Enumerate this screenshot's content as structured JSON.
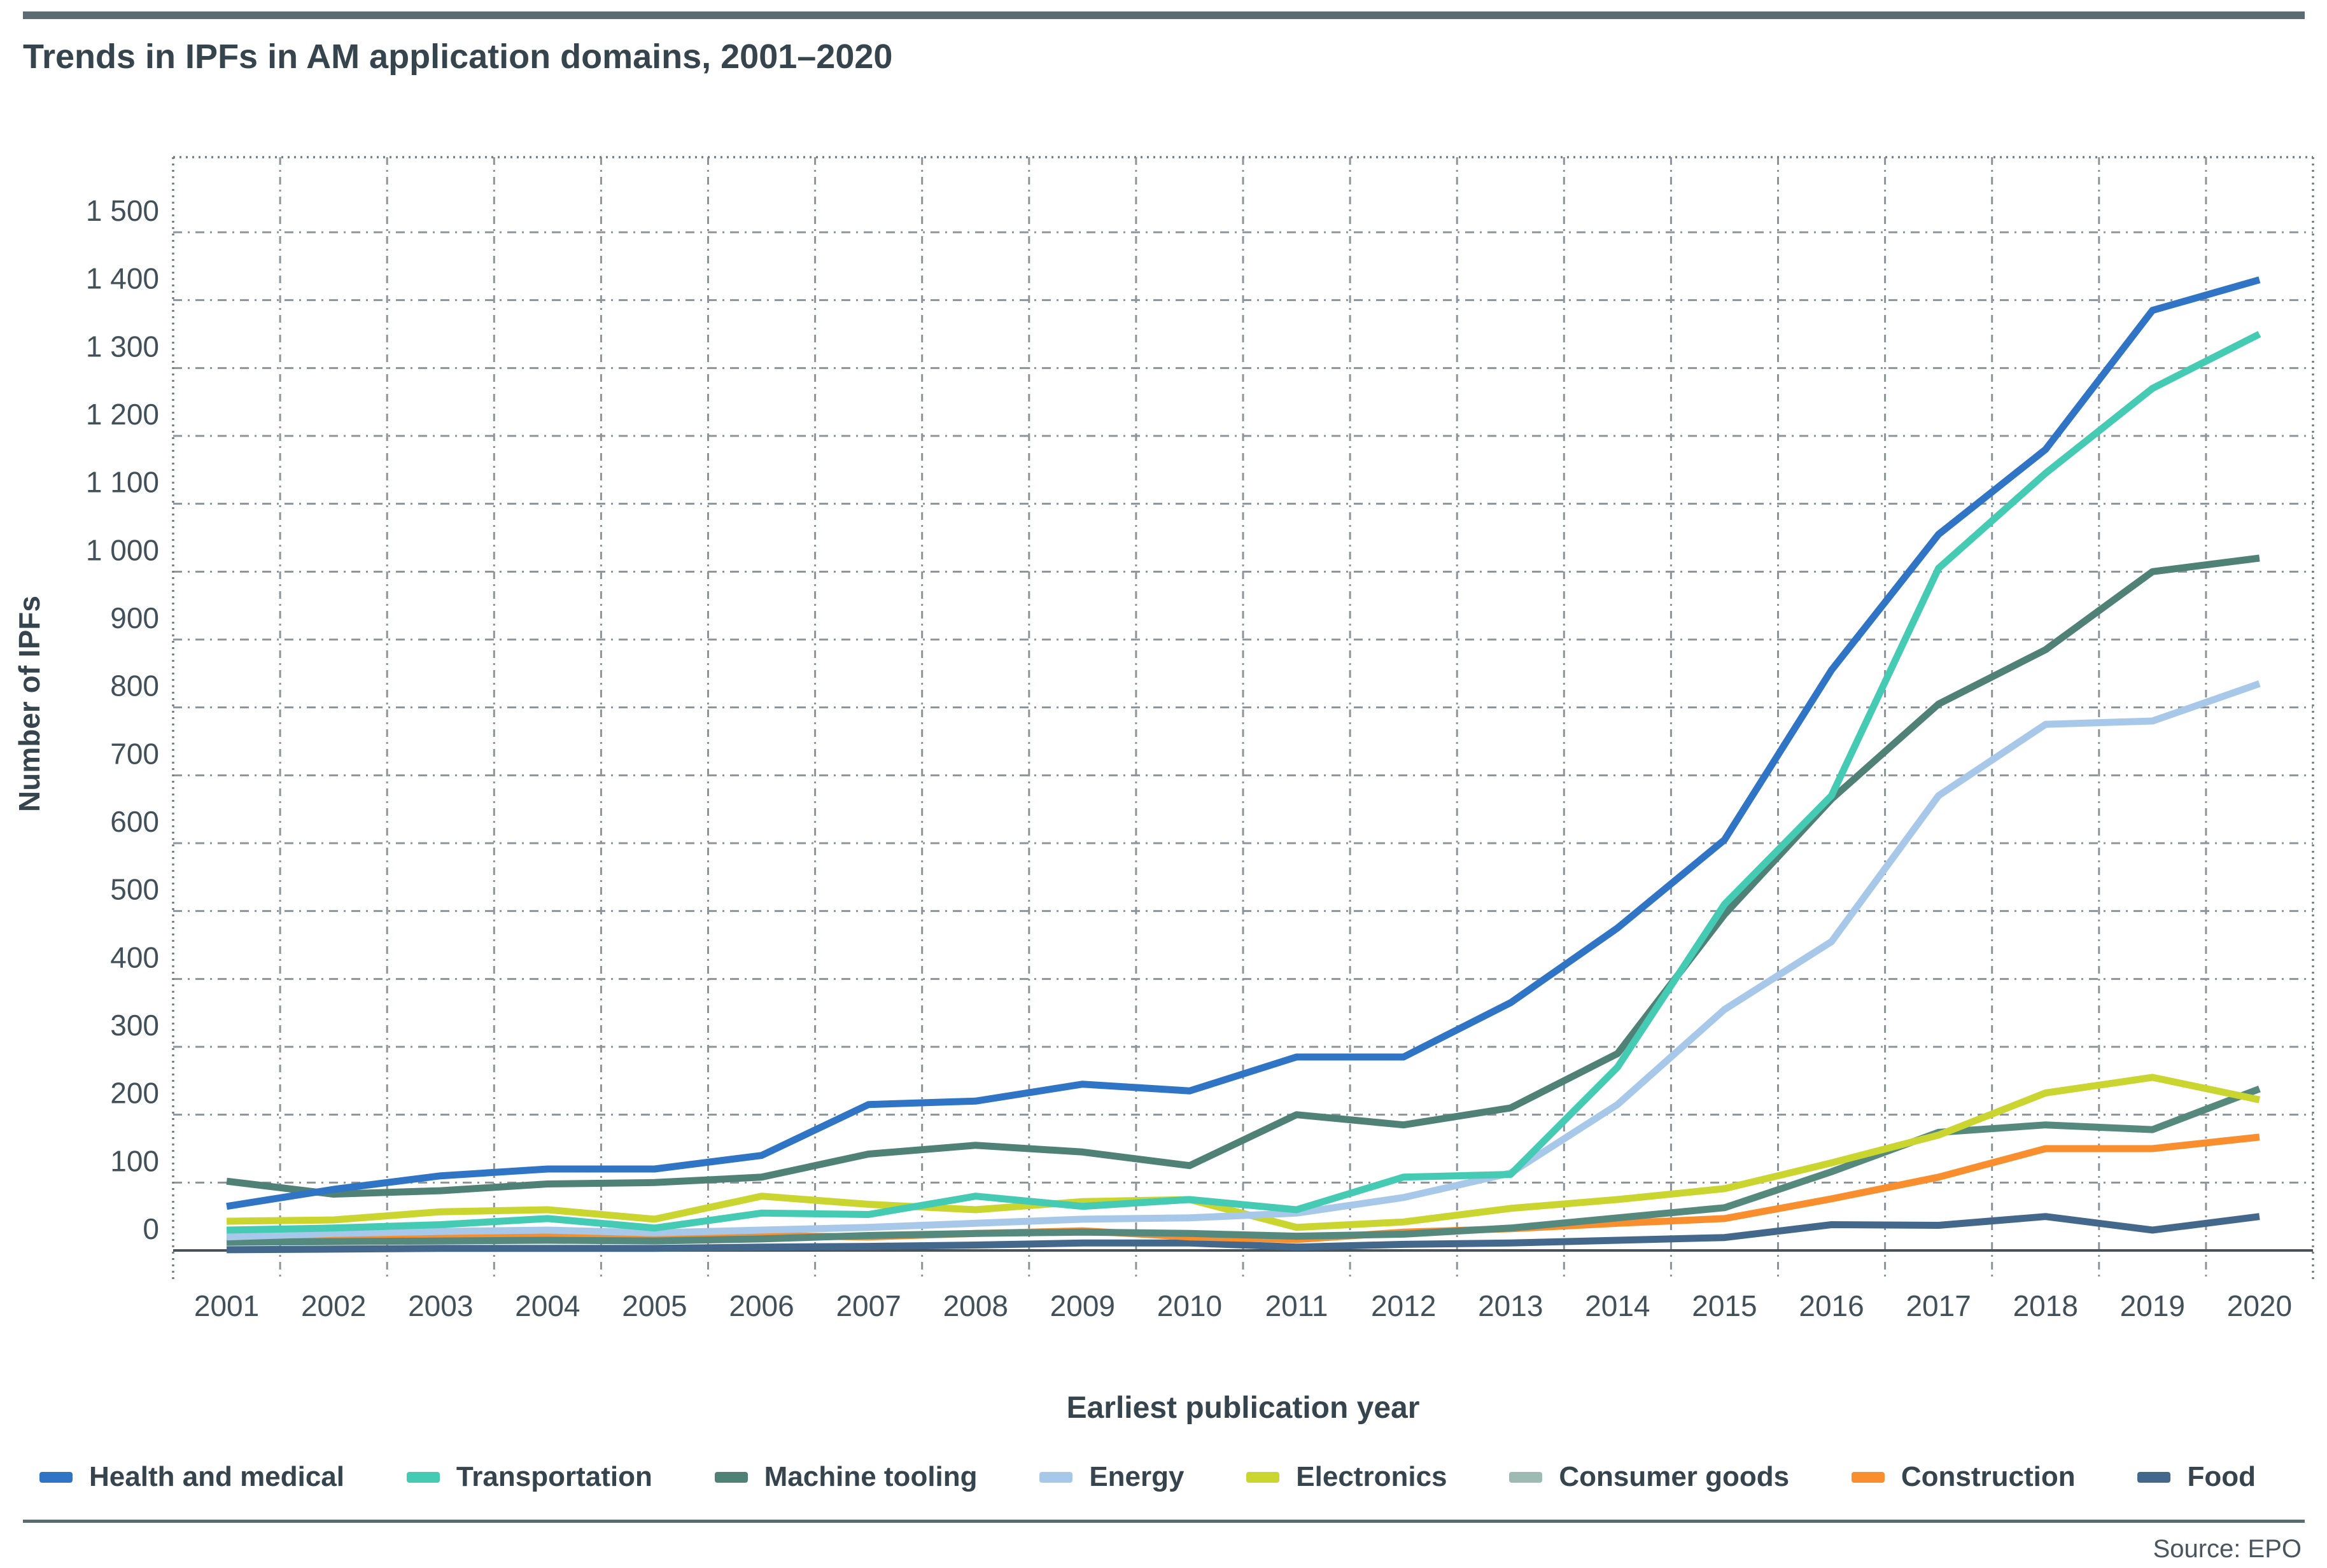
{
  "page": {
    "source": "Source: EPO"
  },
  "chart_data": {
    "type": "line",
    "title": "Trends in IPFs in AM application domains, 2001–2020",
    "xlabel": "Earliest publication year",
    "ylabel": "Number of IPFs",
    "x": [
      2001,
      2002,
      2003,
      2004,
      2005,
      2006,
      2007,
      2008,
      2009,
      2010,
      2011,
      2012,
      2013,
      2014,
      2015,
      2016,
      2017,
      2018,
      2019,
      2020
    ],
    "ylim": [
      0,
      1500
    ],
    "ytick_step": 100,
    "grid": true,
    "legend_position": "bottom",
    "series": [
      {
        "name": "Health and medical",
        "color": "#2f74c5",
        "values": [
          65,
          90,
          110,
          120,
          120,
          140,
          215,
          220,
          245,
          235,
          285,
          285,
          365,
          475,
          605,
          855,
          1055,
          1180,
          1385,
          1430
        ]
      },
      {
        "name": "Transportation",
        "color": "#45cbb4",
        "values": [
          30,
          33,
          38,
          47,
          33,
          55,
          53,
          80,
          65,
          75,
          60,
          108,
          112,
          270,
          510,
          670,
          1005,
          1145,
          1270,
          1350
        ]
      },
      {
        "name": "Machine tooling",
        "color": "#4f8176",
        "values": [
          102,
          83,
          88,
          98,
          100,
          108,
          142,
          155,
          145,
          125,
          200,
          185,
          210,
          290,
          495,
          665,
          805,
          885,
          1000,
          1020
        ]
      },
      {
        "name": "Energy",
        "color": "#a8c8ea",
        "values": [
          20,
          25,
          28,
          30,
          26,
          30,
          34,
          40,
          46,
          48,
          55,
          78,
          114,
          215,
          355,
          455,
          670,
          775,
          780,
          835
        ]
      },
      {
        "name": "Electronics",
        "color": "#cbd530",
        "values": [
          43,
          45,
          57,
          60,
          46,
          80,
          68,
          60,
          72,
          75,
          34,
          42,
          62,
          75,
          91,
          129,
          170,
          232,
          255,
          222
        ]
      },
      {
        "name": "Consumer goods",
        "color": "#56897e",
        "swatch_color": "#9dbbb3",
        "values": [
          12,
          13,
          14,
          15,
          14,
          17,
          22,
          25,
          27,
          25,
          21,
          24,
          33,
          48,
          63,
          116,
          174,
          185,
          178,
          238
        ]
      },
      {
        "name": "Construction",
        "color": "#f98e2f",
        "values": [
          16,
          20,
          22,
          22,
          20,
          22,
          20,
          25,
          29,
          20,
          16,
          27,
          32,
          40,
          47,
          76,
          108,
          150,
          150,
          167
        ]
      },
      {
        "name": "Food",
        "color": "#44688c",
        "values": [
          1,
          2,
          3,
          3,
          3,
          5,
          6,
          8,
          11,
          11,
          5,
          9,
          11,
          15,
          19,
          38,
          37,
          50,
          30,
          50
        ]
      }
    ],
    "style": {
      "grid_color": "#8c949a",
      "border_color": "#737d83",
      "axis_color": "#47525a",
      "tick_text_color": "#42505a",
      "line_width": 11
    }
  }
}
